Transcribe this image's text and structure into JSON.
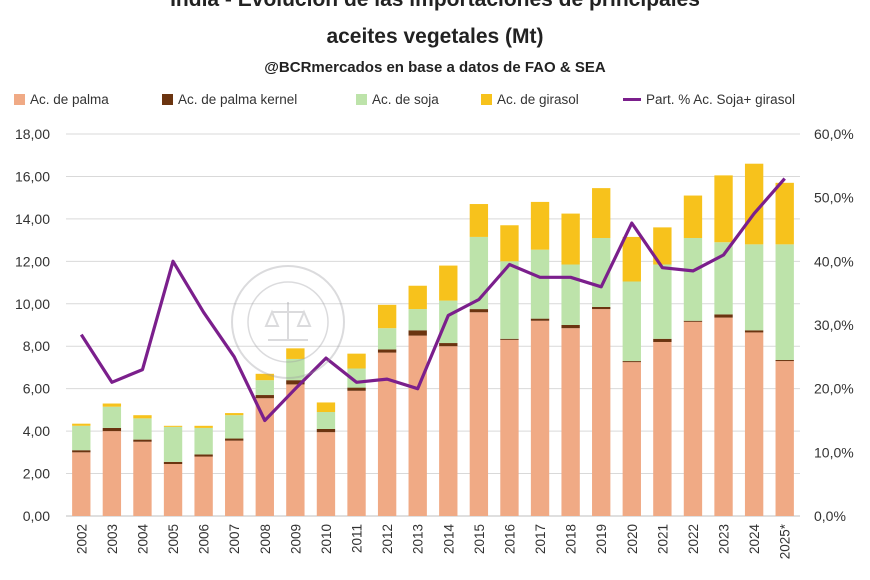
{
  "header": {
    "title_line1": "India - Evolución de las importaciones de principales",
    "title_line2": "aceites vegetales (Mt)",
    "subtitle": "@BCRmercados en base a datos de FAO & SEA"
  },
  "watermark": {
    "text": "BOLSA DE COMERCIO DE ROSARIO"
  },
  "chart_data": {
    "type": "bar",
    "stacked": true,
    "title": "India - Evolución de las importaciones de principales aceites vegetales (Mt)",
    "subtitle": "@BCRmercados en base a datos de FAO & SEA",
    "categories": [
      "2002",
      "2003",
      "2004",
      "2005",
      "2006",
      "2007",
      "2008",
      "2009",
      "2010",
      "2011",
      "2012",
      "2013",
      "2014",
      "2015",
      "2016",
      "2017",
      "2018",
      "2019",
      "2020",
      "2021",
      "2022",
      "2023",
      "2024",
      "2025*"
    ],
    "series": [
      {
        "name": "Ac. de palma",
        "color": "#f0aa85",
        "values": [
          3.0,
          4.0,
          3.5,
          2.45,
          2.8,
          3.55,
          5.55,
          6.2,
          3.95,
          5.9,
          7.7,
          8.5,
          8.0,
          9.6,
          8.3,
          9.2,
          8.85,
          9.75,
          7.25,
          8.2,
          9.15,
          9.35,
          8.65,
          7.3
        ]
      },
      {
        "name": "Ac. de palma kernel",
        "color": "#6b3410",
        "values": [
          0.1,
          0.15,
          0.1,
          0.1,
          0.1,
          0.1,
          0.15,
          0.2,
          0.15,
          0.15,
          0.15,
          0.25,
          0.15,
          0.15,
          0.05,
          0.1,
          0.15,
          0.1,
          0.05,
          0.15,
          0.05,
          0.15,
          0.1,
          0.05
        ]
      },
      {
        "name": "Ac. de soja",
        "color": "#bde3aa",
        "values": [
          1.15,
          1.0,
          1.0,
          1.65,
          1.25,
          1.1,
          0.7,
          1.0,
          0.8,
          0.9,
          1.0,
          1.0,
          2.0,
          3.4,
          3.65,
          3.25,
          2.85,
          3.25,
          3.75,
          3.5,
          3.9,
          3.4,
          4.05,
          5.45
        ]
      },
      {
        "name": "Ac. de girasol",
        "color": "#f7c21c",
        "values": [
          0.1,
          0.15,
          0.15,
          0.05,
          0.1,
          0.1,
          0.3,
          0.5,
          0.45,
          0.7,
          1.1,
          1.1,
          1.65,
          1.55,
          1.7,
          2.25,
          2.4,
          2.35,
          2.1,
          1.75,
          2.0,
          3.15,
          3.8,
          2.9
        ]
      }
    ],
    "line_series": {
      "name": "Part. % Ac. Soja+ girasol",
      "color": "#7b1f8c",
      "axis": "right",
      "values": [
        28.5,
        21.0,
        23.0,
        40.0,
        32.0,
        25.0,
        15.0,
        20.0,
        24.8,
        21.0,
        21.5,
        20.0,
        31.5,
        34.0,
        39.5,
        37.5,
        37.5,
        36.0,
        46.0,
        39.0,
        38.5,
        41.0,
        47.5,
        53.0
      ]
    },
    "y_left": {
      "min": 0,
      "max": 18,
      "step": 2,
      "tick_labels": [
        "0,00",
        "2,00",
        "4,00",
        "6,00",
        "8,00",
        "10,00",
        "12,00",
        "14,00",
        "16,00",
        "18,00"
      ]
    },
    "y_right": {
      "min": 0,
      "max": 60,
      "step": 10,
      "tick_labels": [
        "0,0%",
        "10,0%",
        "20,0%",
        "30,0%",
        "40,0%",
        "50,0%",
        "60,0%"
      ]
    },
    "grid": true,
    "legend_position": "top"
  }
}
